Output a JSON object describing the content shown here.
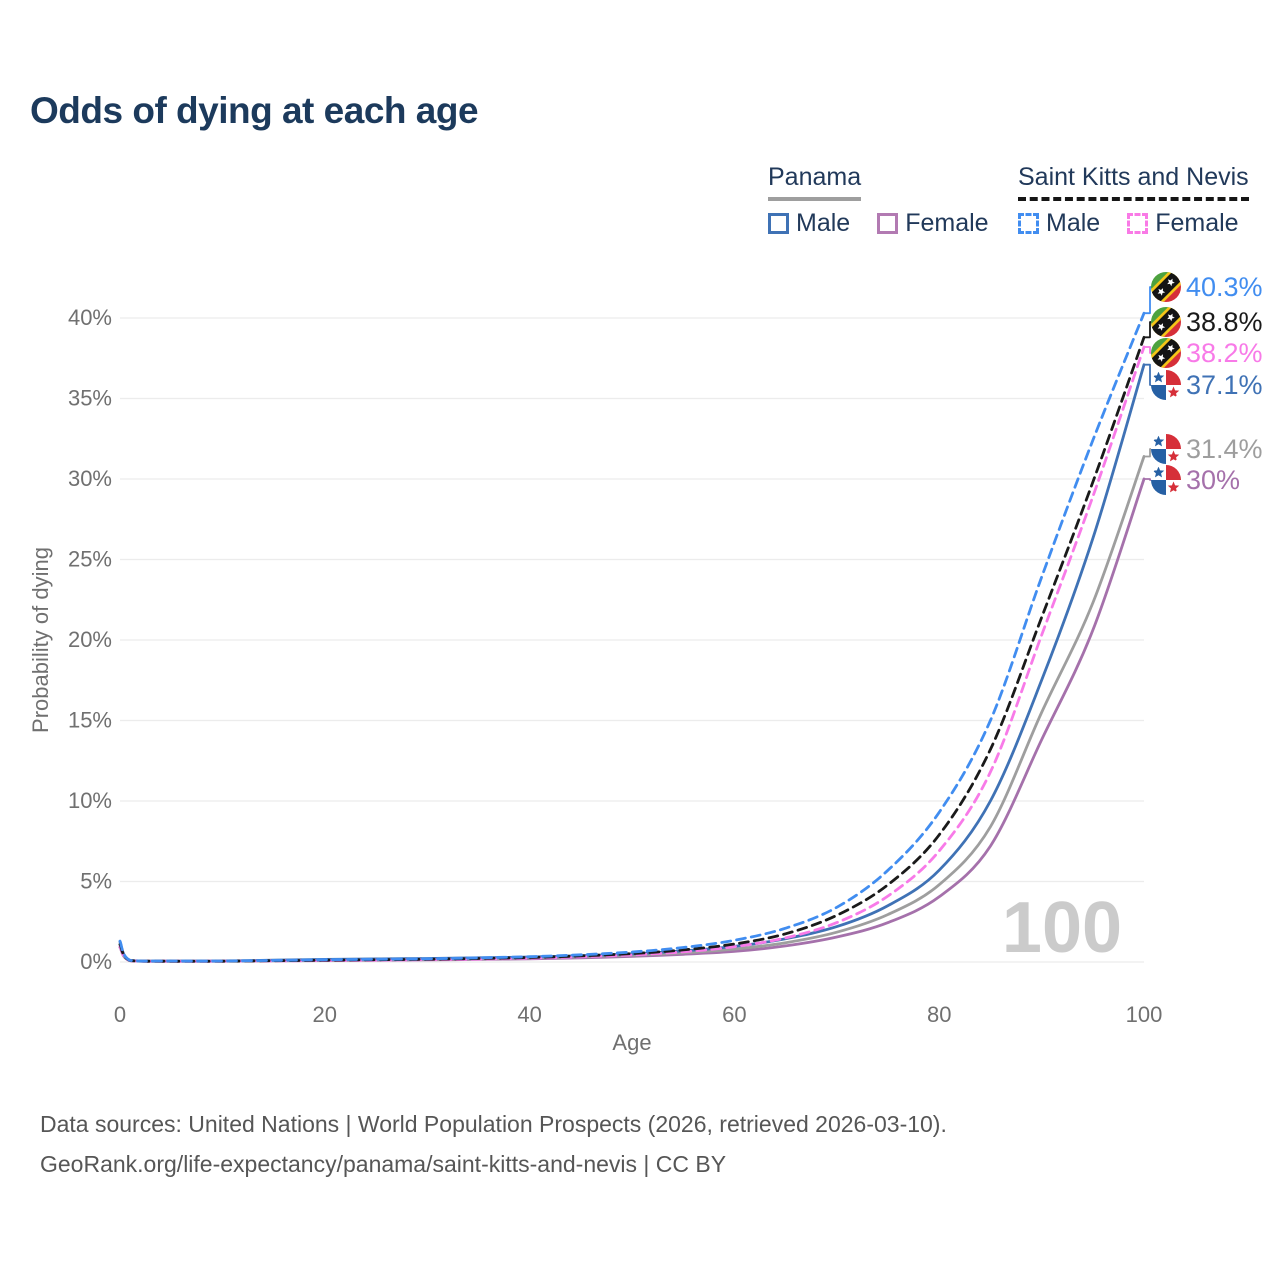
{
  "title": "Odds of dying at each age",
  "legend": {
    "panama": {
      "label": "Panama",
      "male_label": "Male",
      "female_label": "Female"
    },
    "skn": {
      "label": "Saint Kitts and Nevis",
      "male_label": "Male",
      "female_label": "Female"
    }
  },
  "footer": {
    "line1": "Data sources: United Nations | World Population Prospects (2026, retrieved 2026-03-10).",
    "line2": "GeoRank.org/life-expectancy/panama/saint-kitts-and-nevis | CC BY"
  },
  "chart_data": {
    "type": "line",
    "title": "Odds of dying at each age",
    "xlabel": "Age",
    "ylabel": "Probability of dying",
    "xlim": [
      0,
      100
    ],
    "ylim": [
      0,
      40
    ],
    "x_ticks": [
      0,
      20,
      40,
      60,
      80,
      100
    ],
    "y_ticks": [
      0,
      5,
      10,
      15,
      20,
      25,
      30,
      35,
      40
    ],
    "y_tick_suffix": "%",
    "grid": "horizontal",
    "age_indicator": "100",
    "x": [
      0,
      1,
      5,
      10,
      15,
      20,
      25,
      30,
      35,
      40,
      45,
      50,
      55,
      60,
      65,
      70,
      75,
      80,
      85,
      90,
      95,
      100
    ],
    "series": [
      {
        "name": "Saint Kitts and Nevis Male",
        "country": "Saint Kitts and Nevis",
        "sex": "Male",
        "style": "dashed",
        "color": "#418df0",
        "flag": "kn",
        "end_label": "40.3%",
        "end_value": 40.3,
        "values": [
          1.3,
          0.1,
          0.06,
          0.06,
          0.1,
          0.14,
          0.17,
          0.2,
          0.26,
          0.33,
          0.45,
          0.62,
          0.9,
          1.35,
          2.1,
          3.4,
          5.7,
          9.3,
          15.0,
          23.9,
          32.4,
          40.3
        ]
      },
      {
        "name": "Saint Kitts and Nevis Overall",
        "country": "Saint Kitts and Nevis",
        "sex": "Both",
        "style": "dashed",
        "color": "#1a1a1a",
        "flag": "kn",
        "end_label": "38.8%",
        "end_value": 38.8,
        "values": [
          1.1,
          0.09,
          0.05,
          0.05,
          0.08,
          0.11,
          0.14,
          0.17,
          0.22,
          0.28,
          0.38,
          0.52,
          0.75,
          1.12,
          1.75,
          2.9,
          4.8,
          7.9,
          13.2,
          21.4,
          29.8,
          38.8
        ]
      },
      {
        "name": "Saint Kitts and Nevis Female",
        "country": "Saint Kitts and Nevis",
        "sex": "Female",
        "style": "dashed",
        "color": "#f87ae8",
        "flag": "kn",
        "end_label": "38.2%",
        "end_value": 38.2,
        "values": [
          0.95,
          0.08,
          0.05,
          0.05,
          0.07,
          0.09,
          0.11,
          0.14,
          0.18,
          0.24,
          0.32,
          0.44,
          0.63,
          0.95,
          1.5,
          2.45,
          4.1,
          6.9,
          11.8,
          20.3,
          28.9,
          38.2
        ]
      },
      {
        "name": "Panama Male",
        "country": "Panama",
        "sex": "Male",
        "style": "solid",
        "color": "#3f72b5",
        "flag": "pa",
        "end_label": "37.1%",
        "end_value": 37.1,
        "values": [
          1.25,
          0.1,
          0.06,
          0.07,
          0.11,
          0.16,
          0.19,
          0.22,
          0.26,
          0.31,
          0.39,
          0.51,
          0.69,
          0.97,
          1.45,
          2.2,
          3.5,
          5.7,
          10.0,
          17.5,
          26.3,
          37.1
        ]
      },
      {
        "name": "Panama Overall",
        "country": "Panama",
        "sex": "Both",
        "style": "solid",
        "color": "#9e9e9e",
        "flag": "pa",
        "end_label": "31.4%",
        "end_value": 31.4,
        "values": [
          1.05,
          0.09,
          0.05,
          0.06,
          0.09,
          0.12,
          0.14,
          0.17,
          0.2,
          0.25,
          0.32,
          0.42,
          0.57,
          0.8,
          1.2,
          1.85,
          2.95,
          4.8,
          8.4,
          15.5,
          22.3,
          31.4
        ]
      },
      {
        "name": "Panama Female",
        "country": "Panama",
        "sex": "Female",
        "style": "solid",
        "color": "#a571ab",
        "flag": "pa",
        "end_label": "30%",
        "end_value": 30,
        "values": [
          0.9,
          0.08,
          0.04,
          0.05,
          0.07,
          0.09,
          0.11,
          0.13,
          0.16,
          0.2,
          0.26,
          0.35,
          0.48,
          0.66,
          1.0,
          1.55,
          2.45,
          4.05,
          7.2,
          13.8,
          20.6,
          30.0
        ]
      }
    ]
  }
}
